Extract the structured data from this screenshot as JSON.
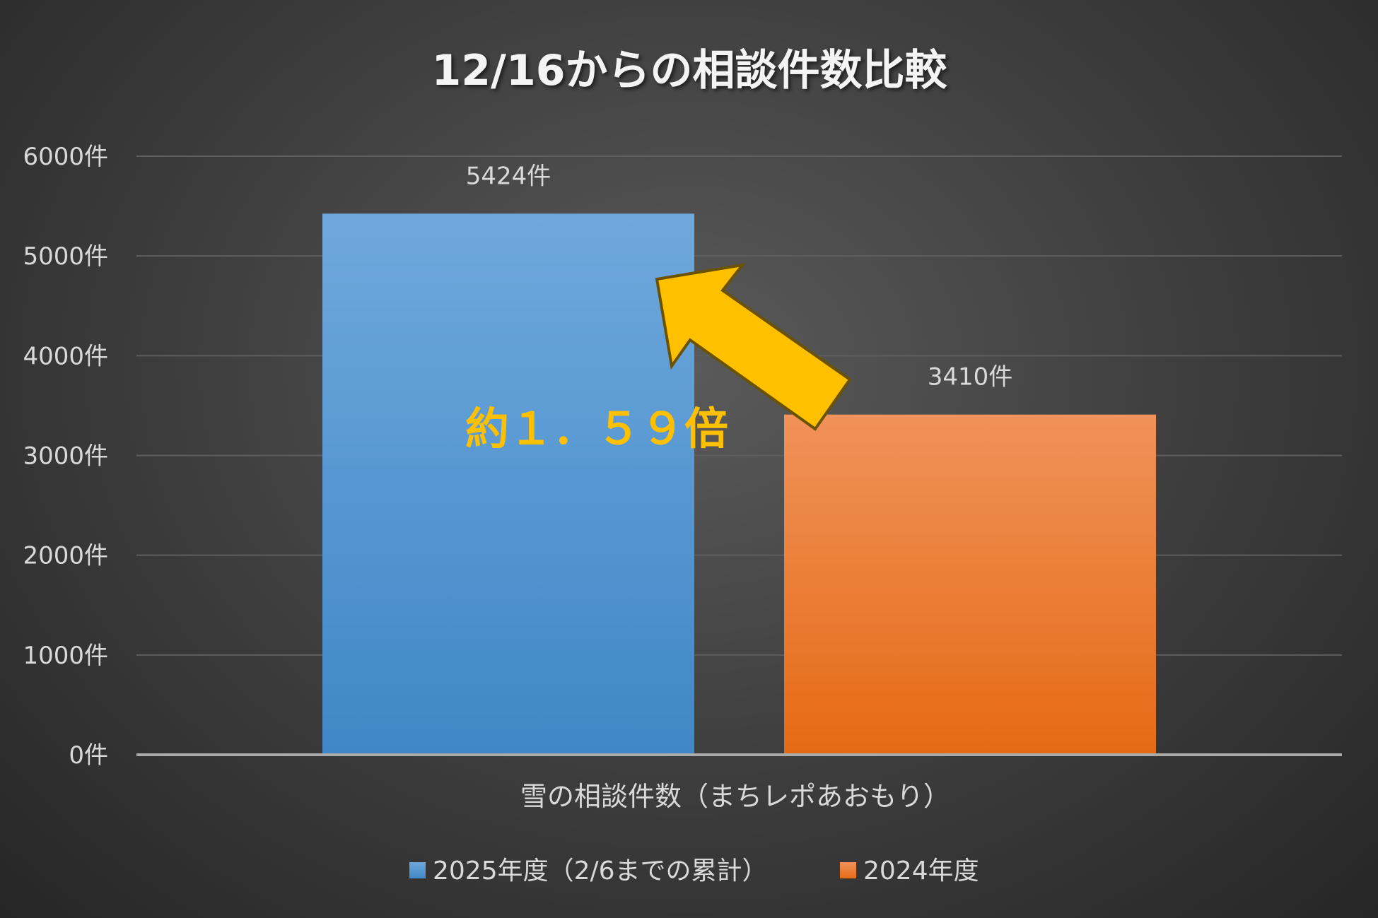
{
  "chart_data": {
    "type": "bar",
    "title": "12/16からの相談件数比較",
    "xlabel": "雪の相談件数（まちレポあおもり）",
    "ylabel": "",
    "ylim": [
      0,
      6000
    ],
    "yticks": [
      0,
      1000,
      2000,
      3000,
      4000,
      5000,
      6000
    ],
    "ytick_suffix": "件",
    "categories": [
      "雪の相談件数（まちレポあおもり）"
    ],
    "series": [
      {
        "name": "2025年度（2/6までの累計）",
        "values": [
          5424
        ],
        "label": "5424件",
        "color_top": "#6fa8dc",
        "color_bottom": "#3f87c7"
      },
      {
        "name": "2024年度",
        "values": [
          3410
        ],
        "label": "3410件",
        "color_top": "#f0925a",
        "color_bottom": "#e66a14"
      }
    ],
    "legend_position": "bottom",
    "grid": true,
    "annotation": {
      "text": "約１．５９倍",
      "color": "#FFC000"
    }
  }
}
